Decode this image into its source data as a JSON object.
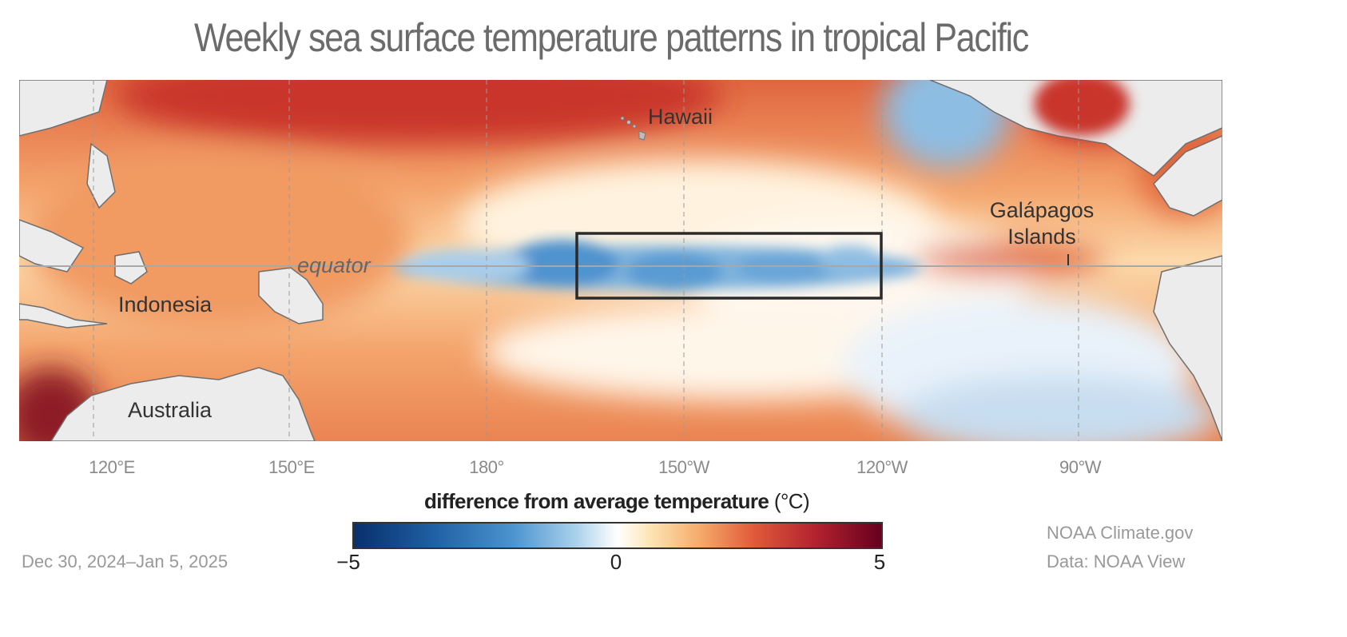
{
  "title": "Weekly sea surface temperature patterns in tropical Pacific",
  "map": {
    "labels": {
      "hawaii": "Hawaii",
      "galapagos_line1": "Galápagos",
      "galapagos_line2": "Islands",
      "equator": "equator",
      "indonesia": "Indonesia",
      "australia": "Australia"
    },
    "longitude_ticks": [
      "120°E",
      "150°E",
      "180°",
      "150°W",
      "120°W",
      "90°W"
    ],
    "highlight_box": "Niño 3.4 region outline (170°W–120°W, 5°S–5°N)"
  },
  "legend": {
    "title": "difference from average temperature",
    "unit": "(°C)",
    "min_label": "−5",
    "mid_label": "0",
    "max_label": "5",
    "colors": [
      "#08306b",
      "#4a93cf",
      "#ffffff",
      "#f5a868",
      "#b0202e",
      "#67001f"
    ]
  },
  "date_range": "Dec 30, 2024–Jan 5, 2025",
  "credits": {
    "source": "NOAA Climate.gov",
    "data": "Data: NOAA View"
  }
}
